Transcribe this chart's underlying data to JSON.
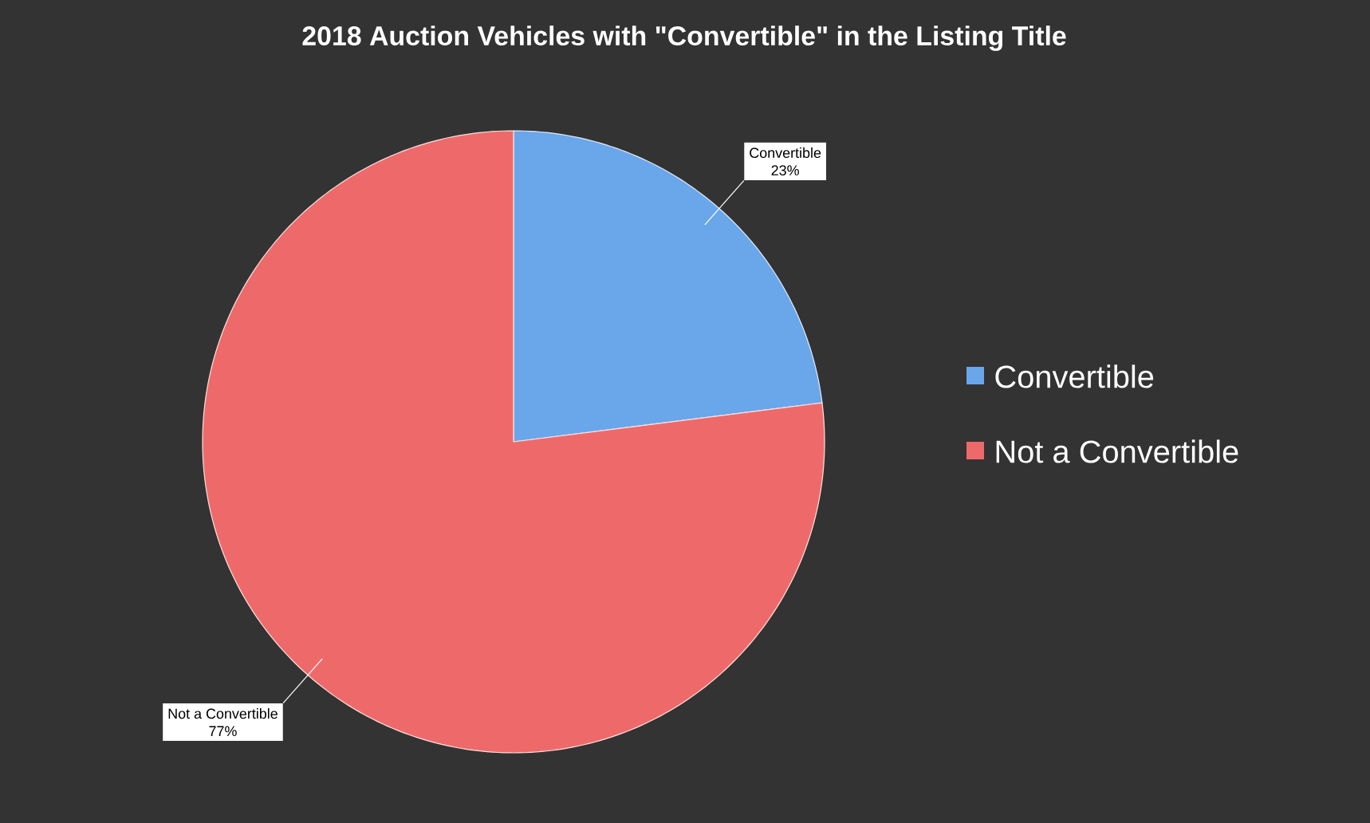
{
  "chart_data": {
    "type": "pie",
    "title": "2018 Auction Vehicles with \"Convertible\" in the Listing Title",
    "categories": [
      "Convertible",
      "Not a Convertible"
    ],
    "values": [
      23,
      77
    ],
    "colors": [
      "#6aa6ea",
      "#ee6a6a"
    ],
    "value_labels": [
      "23%",
      "77%"
    ],
    "legend": "right"
  }
}
